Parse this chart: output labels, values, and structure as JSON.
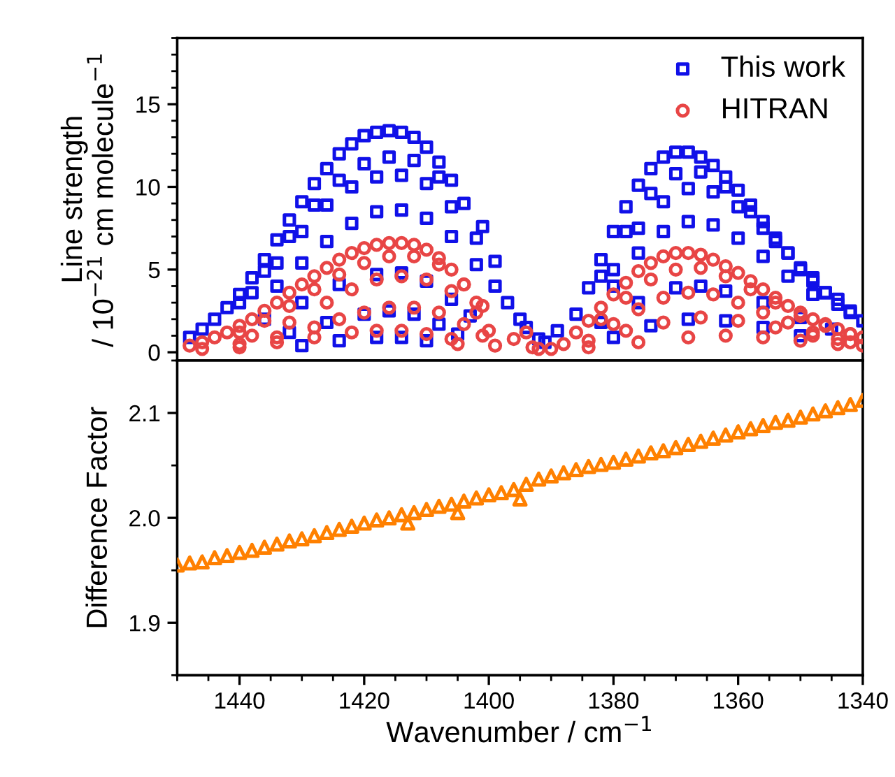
{
  "chart_data": [
    {
      "type": "scatter",
      "ylabel": "Line strength\n/ 10$^{−21}$ cm molecule$^{−1}$",
      "xlim": [
        1450,
        1340
      ],
      "xticks": [
        1440,
        1420,
        1400,
        1380,
        1360,
        1340
      ],
      "ylim": [
        -0.5,
        19
      ],
      "yticks": [
        0,
        5,
        10,
        15
      ],
      "tick_labels": "y",
      "legend": "top right",
      "grid": false,
      "series": [
        {
          "name": "This work",
          "color": "#1010e8",
          "marker": "square",
          "x": [
            1448,
            1446,
            1444,
            1442,
            1440,
            1438,
            1436,
            1434,
            1432,
            1430,
            1428,
            1426,
            1424,
            1422,
            1420,
            1418,
            1416,
            1414,
            1412,
            1410,
            1408,
            1406,
            1440,
            1436,
            1432,
            1428,
            1424,
            1420,
            1416,
            1412,
            1408,
            1404,
            1401,
            1438,
            1434,
            1430,
            1426,
            1422,
            1418,
            1414,
            1410,
            1406,
            1402,
            1399,
            1434,
            1430,
            1426,
            1422,
            1418,
            1414,
            1410,
            1406,
            1402,
            1399,
            1436,
            1430,
            1424,
            1418,
            1414,
            1410,
            1406,
            1403,
            1432,
            1426,
            1420,
            1416,
            1412,
            1408,
            1405,
            1430,
            1424,
            1418,
            1414,
            1410,
            1397,
            1395,
            1394,
            1392,
            1386,
            1384,
            1382,
            1380,
            1378,
            1376,
            1374,
            1372,
            1370,
            1368,
            1366,
            1364,
            1362,
            1360,
            1358,
            1356,
            1354,
            1352,
            1350,
            1348,
            1346,
            1344,
            1342,
            1340,
            1382,
            1378,
            1374,
            1370,
            1366,
            1362,
            1358,
            1354,
            1350,
            1346,
            1342,
            1380,
            1376,
            1372,
            1368,
            1364,
            1360,
            1356,
            1352,
            1348,
            1344,
            1380,
            1376,
            1372,
            1368,
            1364,
            1360,
            1356,
            1352,
            1348,
            1382,
            1376,
            1370,
            1366,
            1362,
            1356,
            1350,
            1345,
            1380,
            1374,
            1368,
            1362,
            1356,
            1350,
            1391,
            1389
          ],
          "values": [
            0.9,
            1.4,
            2.0,
            2.7,
            3.5,
            4.5,
            5.6,
            6.8,
            8.0,
            9.1,
            10.2,
            11.1,
            12.0,
            12.6,
            13.1,
            13.3,
            13.4,
            13.3,
            13.0,
            12.4,
            11.5,
            10.4,
            3.0,
            4.9,
            7.0,
            8.9,
            10.4,
            11.4,
            11.8,
            11.6,
            10.6,
            9.0,
            7.6,
            3.6,
            5.4,
            7.3,
            8.9,
            10.0,
            10.6,
            10.7,
            10.2,
            8.8,
            6.9,
            5.5,
            4.0,
            5.4,
            6.7,
            7.8,
            8.5,
            8.6,
            8.1,
            7.0,
            5.3,
            4.0,
            2.0,
            3.0,
            4.1,
            4.7,
            4.8,
            4.3,
            3.2,
            2.2,
            1.2,
            1.8,
            2.3,
            2.5,
            2.3,
            1.7,
            1.1,
            0.4,
            0.7,
            0.9,
            0.9,
            0.7,
            3.0,
            2.0,
            1.5,
            0.8,
            2.3,
            3.9,
            5.6,
            7.3,
            8.8,
            10.1,
            11.1,
            11.8,
            12.1,
            12.1,
            11.8,
            11.3,
            10.6,
            9.8,
            8.9,
            7.9,
            6.9,
            6.0,
            5.1,
            4.3,
            3.6,
            2.9,
            2.4,
            1.9,
            4.6,
            7.3,
            9.6,
            10.8,
            10.9,
            10.0,
            8.5,
            6.7,
            5.0,
            3.6,
            2.5,
            5.0,
            7.5,
            9.1,
            9.9,
            9.7,
            8.8,
            7.5,
            6.0,
            4.5,
            3.2,
            4.0,
            6.0,
            7.3,
            7.9,
            7.7,
            6.9,
            5.8,
            4.6,
            3.5,
            1.8,
            3.0,
            3.9,
            4.0,
            3.7,
            3.0,
            2.1,
            1.4,
            0.9,
            1.6,
            2.0,
            1.9,
            1.5,
            1.0,
            0.6,
            1.3
          ]
        },
        {
          "name": "HITRAN",
          "color": "#e84545",
          "marker": "circle",
          "x": [
            1448,
            1446,
            1444,
            1442,
            1440,
            1438,
            1436,
            1434,
            1432,
            1430,
            1428,
            1426,
            1424,
            1422,
            1420,
            1418,
            1416,
            1414,
            1412,
            1410,
            1408,
            1406,
            1404,
            1402,
            1440,
            1436,
            1432,
            1428,
            1424,
            1420,
            1416,
            1412,
            1408,
            1404,
            1401,
            1438,
            1432,
            1426,
            1422,
            1418,
            1414,
            1410,
            1406,
            1402,
            1440,
            1434,
            1428,
            1424,
            1420,
            1416,
            1412,
            1408,
            1404,
            1401,
            1446,
            1440,
            1434,
            1428,
            1422,
            1418,
            1414,
            1410,
            1406,
            1405,
            1400,
            1399,
            1396,
            1394,
            1393,
            1392,
            1390,
            1388,
            1386,
            1384,
            1382,
            1380,
            1378,
            1376,
            1374,
            1372,
            1370,
            1368,
            1366,
            1364,
            1362,
            1360,
            1358,
            1356,
            1354,
            1352,
            1350,
            1348,
            1346,
            1344,
            1342,
            1340,
            1382,
            1378,
            1374,
            1370,
            1366,
            1362,
            1358,
            1354,
            1350,
            1346,
            1342,
            1380,
            1376,
            1372,
            1368,
            1364,
            1360,
            1356,
            1352,
            1348,
            1344,
            1384,
            1378,
            1372,
            1366,
            1360,
            1354,
            1348,
            1342,
            1384,
            1376,
            1368,
            1362,
            1356,
            1350,
            1344,
            1340
          ],
          "values": [
            0.4,
            0.6,
            0.9,
            1.2,
            1.6,
            2.0,
            2.5,
            3.0,
            3.6,
            4.1,
            4.6,
            5.1,
            5.6,
            6.0,
            6.3,
            6.5,
            6.6,
            6.6,
            6.5,
            6.2,
            5.7,
            5.0,
            4.1,
            3.0,
            1.2,
            1.9,
            2.8,
            3.8,
            4.7,
            5.4,
            5.8,
            5.8,
            5.3,
            4.1,
            2.8,
            1.0,
            1.8,
            3.0,
            3.8,
            4.4,
            4.6,
            4.4,
            3.7,
            2.4,
            0.5,
            0.9,
            1.5,
            2.0,
            2.4,
            2.7,
            2.7,
            2.4,
            1.7,
            1.0,
            0.2,
            0.3,
            0.6,
            0.9,
            1.2,
            1.3,
            1.3,
            1.1,
            0.8,
            0.5,
            1.3,
            0.4,
            0.8,
            1.2,
            0.3,
            0.2,
            0.2,
            0.5,
            1.2,
            1.9,
            2.7,
            3.5,
            4.2,
            4.9,
            5.4,
            5.8,
            6.0,
            6.0,
            5.9,
            5.6,
            5.2,
            4.8,
            4.3,
            3.8,
            3.3,
            2.8,
            2.4,
            2.0,
            1.7,
            1.4,
            1.1,
            0.9,
            2.0,
            3.3,
            4.4,
            5.0,
            5.1,
            4.6,
            3.8,
            3.0,
            2.2,
            1.6,
            1.1,
            1.7,
            2.6,
            3.3,
            3.6,
            3.5,
            3.0,
            2.4,
            1.8,
            1.2,
            0.8,
            0.7,
            1.3,
            1.8,
            2.1,
            1.9,
            1.5,
            1.0,
            0.6,
            0.3,
            0.6,
            0.9,
            1.0,
            0.9,
            0.7,
            0.5,
            0.4
          ]
        }
      ]
    },
    {
      "type": "scatter",
      "xlabel": "Wavenumber / cm$^{−1}$",
      "ylabel": "Difference Factor",
      "xlim": [
        1450,
        1340
      ],
      "xticks": [
        1440,
        1420,
        1400,
        1380,
        1360,
        1340
      ],
      "ylim": [
        1.85,
        2.15
      ],
      "yticks": [
        1.9,
        {
          "value": 2.0,
          "label": "2.0"
        },
        2.1
      ],
      "grid": false,
      "series": [
        {
          "color": "#ff8000",
          "marker": "triangle",
          "x": [
            1450,
            1448,
            1446,
            1444,
            1442,
            1440,
            1438,
            1436,
            1434,
            1432,
            1430,
            1428,
            1426,
            1424,
            1422,
            1420,
            1418,
            1416,
            1414,
            1413,
            1412,
            1410,
            1408,
            1406,
            1405,
            1404,
            1402,
            1400,
            1398,
            1396,
            1395,
            1394,
            1392,
            1390,
            1388,
            1386,
            1384,
            1382,
            1380,
            1378,
            1376,
            1374,
            1372,
            1370,
            1368,
            1366,
            1364,
            1362,
            1360,
            1358,
            1356,
            1354,
            1352,
            1350,
            1348,
            1346,
            1344,
            1342,
            1340
          ],
          "values": [
            1.955,
            1.957,
            1.958,
            1.962,
            1.964,
            1.967,
            1.969,
            1.972,
            1.975,
            1.978,
            1.98,
            1.983,
            1.986,
            1.989,
            1.992,
            1.995,
            1.998,
            2.0,
            2.003,
            1.995,
            2.005,
            2.008,
            2.011,
            2.013,
            2.005,
            2.016,
            2.019,
            2.022,
            2.024,
            2.027,
            2.018,
            2.032,
            2.037,
            2.04,
            2.043,
            2.046,
            2.049,
            2.051,
            2.053,
            2.056,
            2.059,
            2.062,
            2.064,
            2.067,
            2.07,
            2.073,
            2.076,
            2.079,
            2.082,
            2.085,
            2.088,
            2.091,
            2.093,
            2.096,
            2.099,
            2.102,
            2.105,
            2.108,
            2.112
          ]
        }
      ]
    }
  ]
}
